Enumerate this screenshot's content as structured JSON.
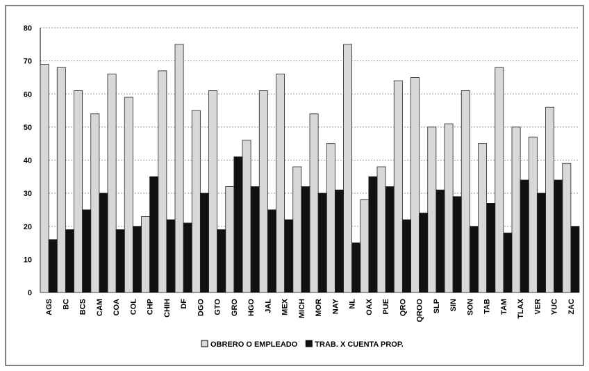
{
  "chart_data": {
    "type": "bar",
    "categories": [
      "AGS",
      "BC",
      "BCS",
      "CAM",
      "COA",
      "COL",
      "CHP",
      "CHIH",
      "DF",
      "DGO",
      "GTO",
      "GRO",
      "HGO",
      "JAL",
      "MEX",
      "MICH",
      "MOR",
      "NAY",
      "NL",
      "OAX",
      "PUE",
      "QRO",
      "QROO",
      "SLP",
      "SIN",
      "SON",
      "TAB",
      "TAM",
      "TLAX",
      "VER",
      "YUC",
      "ZAC"
    ],
    "series": [
      {
        "name": "OBRERO O EMPLEADO",
        "color": "#d8d8d8",
        "values": [
          69,
          68,
          61,
          54,
          66,
          59,
          23,
          67,
          75,
          55,
          61,
          32,
          46,
          61,
          66,
          38,
          54,
          45,
          75,
          28,
          38,
          64,
          65,
          50,
          51,
          61,
          45,
          68,
          50,
          47,
          56,
          39
        ]
      },
      {
        "name": "TRAB. X CUENTA PROP.",
        "color": "#111111",
        "values": [
          16,
          19,
          25,
          30,
          19,
          20,
          35,
          22,
          21,
          30,
          19,
          41,
          32,
          25,
          22,
          32,
          30,
          31,
          15,
          35,
          32,
          22,
          24,
          31,
          29,
          20,
          27,
          18,
          34,
          30,
          34,
          20
        ]
      }
    ],
    "ylim": [
      0,
      80
    ],
    "yticks": [
      0,
      10,
      20,
      30,
      40,
      50,
      60,
      70,
      80
    ],
    "grid": true,
    "legend": "bottom"
  }
}
